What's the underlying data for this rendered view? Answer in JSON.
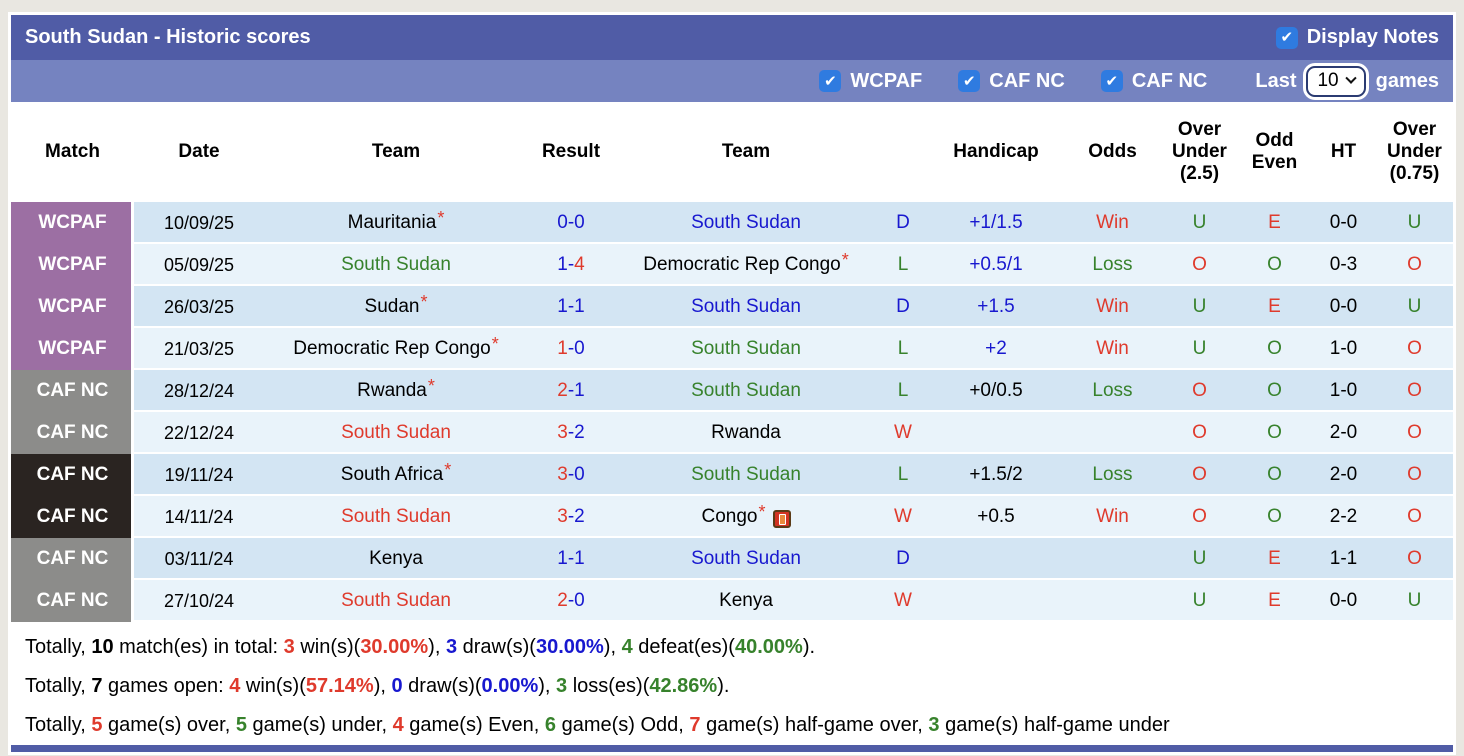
{
  "colors": {
    "red": "#DF3A2C",
    "green": "#37822C",
    "blue": "#1818CF",
    "black": "#000000",
    "header_bar": "#505CA6",
    "filter_bar": "#7583C0",
    "checkbox_blue": "#2F7BE0",
    "badge_purple": "#9C6FA3",
    "badge_gray": "#8C8C8A",
    "badge_dark": "#2A2421",
    "row_odd": "#D3E5F3",
    "row_even": "#E9F3FA"
  },
  "header": {
    "title": "South Sudan - Historic scores",
    "display_notes_label": "Display Notes",
    "display_notes_checked": true
  },
  "filterbar": {
    "filters": [
      {
        "label": "WCPAF",
        "checked": true
      },
      {
        "label": "CAF NC",
        "checked": true
      },
      {
        "label": "CAF NC",
        "checked": true
      }
    ],
    "last_label": "Last",
    "games_count": "10",
    "games_label": "games"
  },
  "table": {
    "headers": [
      "Match",
      "Date",
      "Team",
      "Result",
      "Team",
      "",
      "Handicap",
      "Odds",
      "Over\nUnder\n(2.5)",
      "Odd\nEven",
      "HT",
      "Over\nUnder\n(0.75)"
    ],
    "rows": [
      {
        "competition": "WCPAF",
        "badge": "purple",
        "date": "10/09/25",
        "home": {
          "name": "Mauritania",
          "color": "black",
          "star": true
        },
        "score": {
          "h": "0",
          "hc": "blue",
          "a": "0",
          "ac": "blue"
        },
        "away": {
          "name": "South Sudan",
          "color": "blue"
        },
        "wdl": {
          "t": "D",
          "c": "blue"
        },
        "handicap": {
          "t": "+1/1.5",
          "c": "blue"
        },
        "odds": {
          "t": "Win",
          "c": "red"
        },
        "ou25": {
          "t": "U",
          "c": "green"
        },
        "odd_even": {
          "t": "E",
          "c": "red"
        },
        "ht": "0-0",
        "ou075": {
          "t": "U",
          "c": "green"
        }
      },
      {
        "competition": "WCPAF",
        "badge": "purple",
        "date": "05/09/25",
        "home": {
          "name": "South Sudan",
          "color": "green"
        },
        "score": {
          "h": "1",
          "hc": "blue",
          "a": "4",
          "ac": "red"
        },
        "away": {
          "name": "Democratic Rep Congo",
          "color": "black",
          "star": true
        },
        "wdl": {
          "t": "L",
          "c": "green"
        },
        "handicap": {
          "t": "+0.5/1",
          "c": "blue"
        },
        "odds": {
          "t": "Loss",
          "c": "green"
        },
        "ou25": {
          "t": "O",
          "c": "red"
        },
        "odd_even": {
          "t": "O",
          "c": "green"
        },
        "ht": "0-3",
        "ou075": {
          "t": "O",
          "c": "red"
        }
      },
      {
        "competition": "WCPAF",
        "badge": "purple",
        "date": "26/03/25",
        "home": {
          "name": "Sudan",
          "color": "black",
          "star": true
        },
        "score": {
          "h": "1",
          "hc": "blue",
          "a": "1",
          "ac": "blue"
        },
        "away": {
          "name": "South Sudan",
          "color": "blue"
        },
        "wdl": {
          "t": "D",
          "c": "blue"
        },
        "handicap": {
          "t": "+1.5",
          "c": "blue"
        },
        "odds": {
          "t": "Win",
          "c": "red"
        },
        "ou25": {
          "t": "U",
          "c": "green"
        },
        "odd_even": {
          "t": "E",
          "c": "red"
        },
        "ht": "0-0",
        "ou075": {
          "t": "U",
          "c": "green"
        }
      },
      {
        "competition": "WCPAF",
        "badge": "purple",
        "date": "21/03/25",
        "home": {
          "name": "Democratic Rep Congo",
          "color": "black",
          "star": true
        },
        "score": {
          "h": "1",
          "hc": "red",
          "a": "0",
          "ac": "blue"
        },
        "away": {
          "name": "South Sudan",
          "color": "green"
        },
        "wdl": {
          "t": "L",
          "c": "green"
        },
        "handicap": {
          "t": "+2",
          "c": "blue"
        },
        "odds": {
          "t": "Win",
          "c": "red"
        },
        "ou25": {
          "t": "U",
          "c": "green"
        },
        "odd_even": {
          "t": "O",
          "c": "green"
        },
        "ht": "1-0",
        "ou075": {
          "t": "O",
          "c": "red"
        }
      },
      {
        "competition": "CAF NC",
        "badge": "gray",
        "date": "28/12/24",
        "home": {
          "name": "Rwanda",
          "color": "black",
          "star": true
        },
        "score": {
          "h": "2",
          "hc": "red",
          "a": "1",
          "ac": "blue"
        },
        "away": {
          "name": "South Sudan",
          "color": "green"
        },
        "wdl": {
          "t": "L",
          "c": "green"
        },
        "handicap": {
          "t": "+0/0.5",
          "c": "black"
        },
        "odds": {
          "t": "Loss",
          "c": "green"
        },
        "ou25": {
          "t": "O",
          "c": "red"
        },
        "odd_even": {
          "t": "O",
          "c": "green"
        },
        "ht": "1-0",
        "ou075": {
          "t": "O",
          "c": "red"
        }
      },
      {
        "competition": "CAF NC",
        "badge": "gray",
        "date": "22/12/24",
        "home": {
          "name": "South Sudan",
          "color": "red"
        },
        "score": {
          "h": "3",
          "hc": "red",
          "a": "2",
          "ac": "blue"
        },
        "away": {
          "name": "Rwanda",
          "color": "black"
        },
        "wdl": {
          "t": "W",
          "c": "red"
        },
        "handicap": {
          "t": "",
          "c": "black"
        },
        "odds": {
          "t": "",
          "c": "black"
        },
        "ou25": {
          "t": "O",
          "c": "red"
        },
        "odd_even": {
          "t": "O",
          "c": "green"
        },
        "ht": "2-0",
        "ou075": {
          "t": "O",
          "c": "red"
        }
      },
      {
        "competition": "CAF NC",
        "badge": "dark",
        "date": "19/11/24",
        "home": {
          "name": "South Africa",
          "color": "black",
          "star": true
        },
        "score": {
          "h": "3",
          "hc": "red",
          "a": "0",
          "ac": "blue"
        },
        "away": {
          "name": "South Sudan",
          "color": "green"
        },
        "wdl": {
          "t": "L",
          "c": "green"
        },
        "handicap": {
          "t": "+1.5/2",
          "c": "black"
        },
        "odds": {
          "t": "Loss",
          "c": "green"
        },
        "ou25": {
          "t": "O",
          "c": "red"
        },
        "odd_even": {
          "t": "O",
          "c": "green"
        },
        "ht": "2-0",
        "ou075": {
          "t": "O",
          "c": "red"
        }
      },
      {
        "competition": "CAF NC",
        "badge": "dark",
        "date": "14/11/24",
        "home": {
          "name": "South Sudan",
          "color": "red"
        },
        "score": {
          "h": "3",
          "hc": "red",
          "a": "2",
          "ac": "blue"
        },
        "away": {
          "name": "Congo",
          "color": "black",
          "star": true,
          "red_card": true
        },
        "wdl": {
          "t": "W",
          "c": "red"
        },
        "handicap": {
          "t": "+0.5",
          "c": "black"
        },
        "odds": {
          "t": "Win",
          "c": "red"
        },
        "ou25": {
          "t": "O",
          "c": "red"
        },
        "odd_even": {
          "t": "O",
          "c": "green"
        },
        "ht": "2-2",
        "ou075": {
          "t": "O",
          "c": "red"
        }
      },
      {
        "competition": "CAF NC",
        "badge": "gray",
        "date": "03/11/24",
        "home": {
          "name": "Kenya",
          "color": "black"
        },
        "score": {
          "h": "1",
          "hc": "blue",
          "a": "1",
          "ac": "blue"
        },
        "away": {
          "name": "South Sudan",
          "color": "blue"
        },
        "wdl": {
          "t": "D",
          "c": "blue"
        },
        "handicap": {
          "t": "",
          "c": "black"
        },
        "odds": {
          "t": "",
          "c": "black"
        },
        "ou25": {
          "t": "U",
          "c": "green"
        },
        "odd_even": {
          "t": "E",
          "c": "red"
        },
        "ht": "1-1",
        "ou075": {
          "t": "O",
          "c": "red"
        }
      },
      {
        "competition": "CAF NC",
        "badge": "gray",
        "date": "27/10/24",
        "home": {
          "name": "South Sudan",
          "color": "red"
        },
        "score": {
          "h": "2",
          "hc": "red",
          "a": "0",
          "ac": "blue"
        },
        "away": {
          "name": "Kenya",
          "color": "black"
        },
        "wdl": {
          "t": "W",
          "c": "red"
        },
        "handicap": {
          "t": "",
          "c": "black"
        },
        "odds": {
          "t": "",
          "c": "black"
        },
        "ou25": {
          "t": "U",
          "c": "green"
        },
        "odd_even": {
          "t": "E",
          "c": "red"
        },
        "ht": "0-0",
        "ou075": {
          "t": "U",
          "c": "green"
        }
      }
    ]
  },
  "footer": {
    "lines": [
      [
        {
          "t": "Totally, "
        },
        {
          "t": "10",
          "b": 1
        },
        {
          "t": " match(es) in total: "
        },
        {
          "t": "3",
          "c": "red",
          "b": 1
        },
        {
          "t": " win(s)("
        },
        {
          "t": "30.00%",
          "c": "red",
          "b": 1
        },
        {
          "t": "), "
        },
        {
          "t": "3",
          "c": "blue",
          "b": 1
        },
        {
          "t": " draw(s)("
        },
        {
          "t": "30.00%",
          "c": "blue",
          "b": 1
        },
        {
          "t": "), "
        },
        {
          "t": "4",
          "c": "green",
          "b": 1
        },
        {
          "t": " defeat(es)("
        },
        {
          "t": "40.00%",
          "c": "green",
          "b": 1
        },
        {
          "t": ")."
        }
      ],
      [
        {
          "t": "Totally, "
        },
        {
          "t": "7",
          "b": 1
        },
        {
          "t": " games open: "
        },
        {
          "t": "4",
          "c": "red",
          "b": 1
        },
        {
          "t": " win(s)("
        },
        {
          "t": "57.14%",
          "c": "red",
          "b": 1
        },
        {
          "t": "), "
        },
        {
          "t": "0",
          "c": "blue",
          "b": 1
        },
        {
          "t": " draw(s)("
        },
        {
          "t": "0.00%",
          "c": "blue",
          "b": 1
        },
        {
          "t": "), "
        },
        {
          "t": "3",
          "c": "green",
          "b": 1
        },
        {
          "t": " loss(es)("
        },
        {
          "t": "42.86%",
          "c": "green",
          "b": 1
        },
        {
          "t": ")."
        }
      ],
      [
        {
          "t": "Totally, "
        },
        {
          "t": "5",
          "c": "red",
          "b": 1
        },
        {
          "t": " game(s) over, "
        },
        {
          "t": "5",
          "c": "green",
          "b": 1
        },
        {
          "t": " game(s) under, "
        },
        {
          "t": "4",
          "c": "red",
          "b": 1
        },
        {
          "t": " game(s) Even, "
        },
        {
          "t": "6",
          "c": "green",
          "b": 1
        },
        {
          "t": " game(s) Odd, "
        },
        {
          "t": "7",
          "c": "red",
          "b": 1
        },
        {
          "t": " game(s) half-game over, "
        },
        {
          "t": "3",
          "c": "green",
          "b": 1
        },
        {
          "t": " game(s) half-game under"
        }
      ]
    ]
  }
}
